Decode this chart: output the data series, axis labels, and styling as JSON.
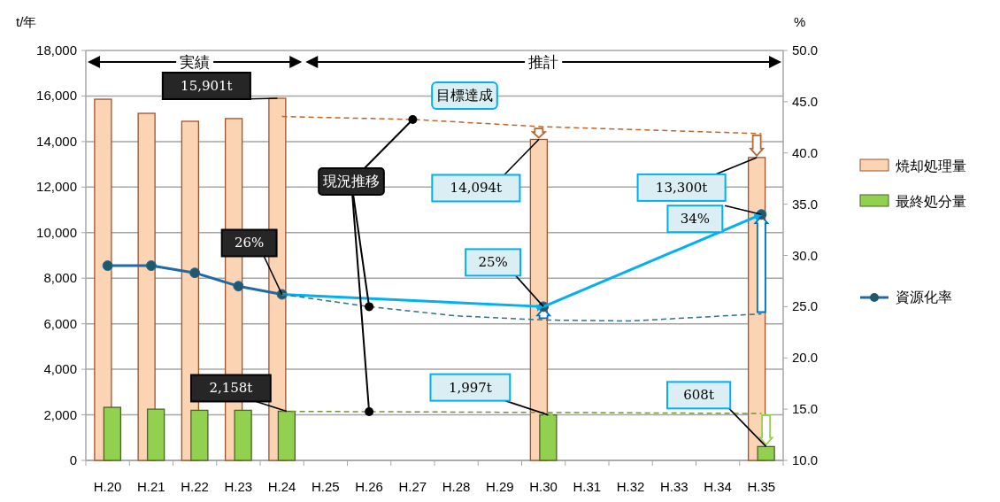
{
  "chart_data": {
    "type": "bar",
    "categories": [
      "H.20",
      "H.21",
      "H.22",
      "H.23",
      "H.24",
      "H.25",
      "H.26",
      "H.27",
      "H.28",
      "H.29",
      "H.30",
      "H.31",
      "H.32",
      "H.33",
      "H.34",
      "H.35"
    ],
    "series": [
      {
        "name": "焼却処理量",
        "color": "#fbd4b4",
        "values": [
          15860,
          15240,
          14890,
          15010,
          15901,
          null,
          null,
          null,
          null,
          null,
          14094,
          null,
          null,
          null,
          null,
          13300
        ],
        "value_labels": [
          null,
          null,
          null,
          null,
          "15,901t",
          null,
          null,
          null,
          null,
          null,
          "14,094t",
          null,
          null,
          null,
          null,
          "13,300t"
        ]
      },
      {
        "name": "最終処分量",
        "color": "#92d050",
        "values": [
          2330,
          2250,
          2200,
          2200,
          2158,
          null,
          null,
          null,
          null,
          null,
          1997,
          null,
          null,
          null,
          null,
          608
        ],
        "value_labels": [
          null,
          null,
          null,
          null,
          "2,158t",
          null,
          null,
          null,
          null,
          null,
          "1,997t",
          null,
          null,
          null,
          null,
          "608t"
        ]
      },
      {
        "name": "資源化率",
        "type": "line",
        "axis": "y2",
        "color": "#1f6aa5",
        "marker": "circle",
        "values": [
          29.0,
          29.0,
          28.3,
          27.0,
          26.2,
          null,
          null,
          null,
          null,
          null,
          25,
          null,
          null,
          null,
          null,
          34
        ],
        "value_labels": [
          null,
          null,
          null,
          null,
          "26%",
          null,
          null,
          null,
          null,
          null,
          "25%",
          null,
          null,
          null,
          null,
          "34%"
        ]
      },
      {
        "type": "line",
        "axis": "y2",
        "color": "#00b0f0",
        "x": [
          "H.24",
          "H.30",
          "H.35"
        ],
        "values": [
          26.2,
          25,
          34
        ]
      },
      {
        "type": "line",
        "line_style": "dashed",
        "color": "#c0652a",
        "x": [
          "H.24",
          "H.27",
          "H.30",
          "H.35"
        ],
        "values": [
          15100,
          14970,
          14650,
          14350
        ]
      },
      {
        "type": "line",
        "line_style": "dashed",
        "color": "#76923c",
        "x": [
          "H.24",
          "H.26",
          "H.35"
        ],
        "values": [
          2150,
          2140,
          2060
        ]
      },
      {
        "type": "line",
        "line_style": "dashed",
        "axis": "y2",
        "color": "#31708f",
        "x": [
          "H.24",
          "H.26",
          "H.28",
          "H.30",
          "H.32",
          "H.35"
        ],
        "values": [
          26.2,
          25.0,
          24.1,
          23.7,
          23.6,
          24.3
        ]
      }
    ],
    "ylabel": "t/年",
    "y2label": "%",
    "ylim": [
      0,
      18000
    ],
    "yticks": [
      0,
      {
        "value": 2000,
        "label": "2,000"
      },
      {
        "value": 4000,
        "label": "4,000"
      },
      {
        "value": 6000,
        "label": "6,000"
      },
      {
        "value": 8000,
        "label": "8,000"
      },
      {
        "value": 10000,
        "label": "10,000"
      },
      {
        "value": 12000,
        "label": "12,000"
      },
      {
        "value": 14000,
        "label": "14,000"
      },
      {
        "value": 16000,
        "label": "16,000"
      },
      {
        "value": 18000,
        "label": "18,000"
      }
    ],
    "y2lim": [
      10,
      50
    ],
    "y2ticks": [
      {
        "value": 10,
        "label": "10.0"
      },
      {
        "value": 15,
        "label": "15.0"
      },
      {
        "value": 20,
        "label": "20.0"
      },
      {
        "value": 25,
        "label": "25.0"
      },
      {
        "value": 30,
        "label": "30.0"
      },
      {
        "value": 35,
        "label": "35.0"
      },
      {
        "value": 40,
        "label": "40.0"
      },
      {
        "value": 45,
        "label": "45.0"
      },
      {
        "value": 50,
        "label": "50.0"
      }
    ],
    "grid": "y",
    "legend": "right",
    "annotations": [
      "実績",
      "推計",
      "目標達成",
      {
        "text": "現況推移",
        "x": "H.27",
        "y": 14970
      }
    ]
  }
}
